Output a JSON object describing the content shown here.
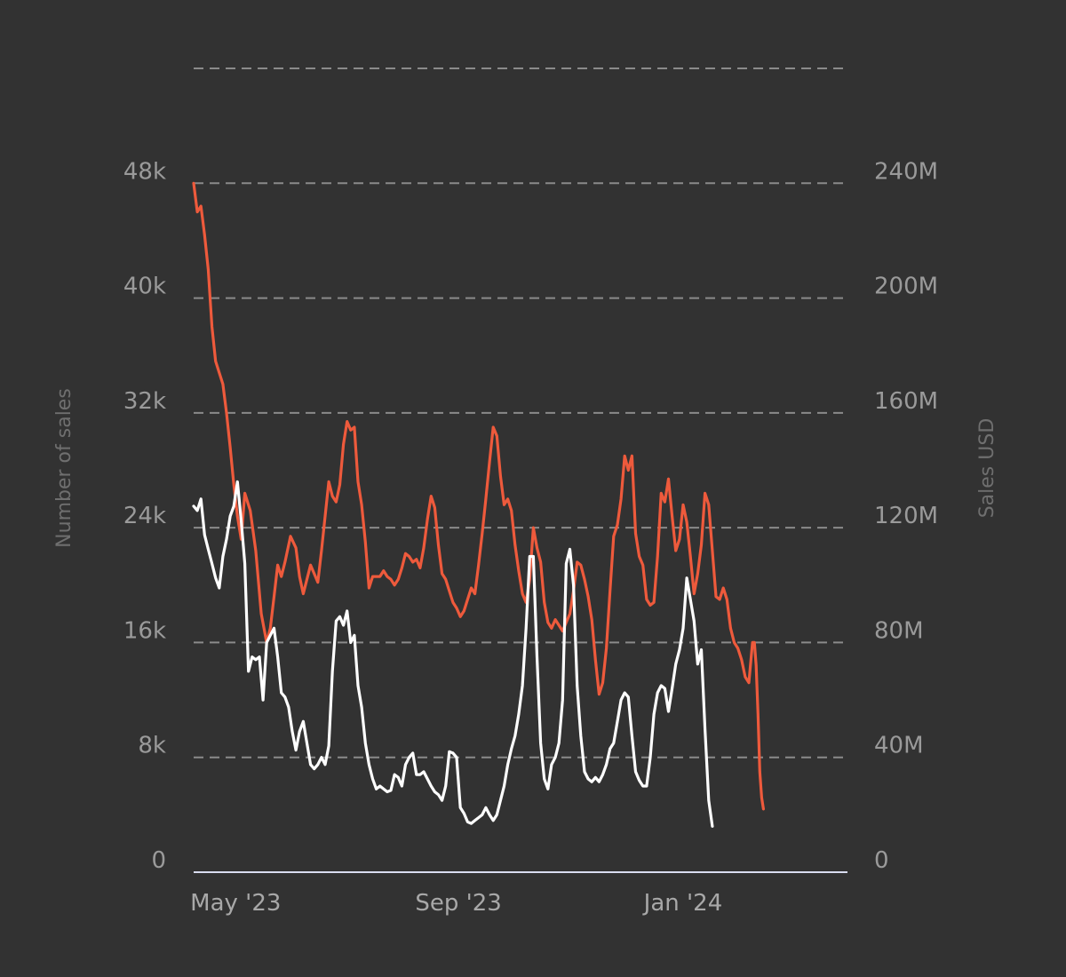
{
  "colors": {
    "background": "#323232",
    "grid": "#8a8a8a",
    "baseline": "#d8dcf0",
    "count_line": "#ffffff",
    "usd_line": "#ee5a3c"
  },
  "chart_data": {
    "type": "line",
    "title": "",
    "x_start": "2023-04-08",
    "x_end": "2024-03-31",
    "x_range_days": [
      0,
      358
    ],
    "x_ticks": [
      {
        "label": "May '23",
        "day": 23
      },
      {
        "label": "Sep '23",
        "day": 145
      },
      {
        "label": "Jan '24",
        "day": 268
      }
    ],
    "left_axis": {
      "label": "Number of sales",
      "range": [
        0,
        56000
      ],
      "tick_values": [
        0,
        8000,
        16000,
        24000,
        32000,
        40000,
        48000
      ],
      "tick_labels": [
        "0",
        "8k",
        "16k",
        "24k",
        "32k",
        "40k",
        "48k"
      ]
    },
    "right_axis": {
      "label": "Sales USD",
      "range": [
        0,
        280000000
      ],
      "tick_values": [
        0,
        40000000,
        80000000,
        120000000,
        160000000,
        200000000,
        240000000
      ],
      "tick_labels": [
        "0",
        "40M",
        "80M",
        "120M",
        "160M",
        "200M",
        "240M"
      ]
    },
    "series": [
      {
        "name": "Sales USD",
        "axis": "right",
        "points": [
          [
            0,
            240000000
          ],
          [
            2,
            230000000
          ],
          [
            4,
            232000000
          ],
          [
            6,
            222000000
          ],
          [
            8,
            210000000
          ],
          [
            10,
            190000000
          ],
          [
            12,
            178000000
          ],
          [
            14,
            174000000
          ],
          [
            16,
            170000000
          ],
          [
            18,
            160000000
          ],
          [
            20,
            148000000
          ],
          [
            22,
            135000000
          ],
          [
            24,
            124000000
          ],
          [
            26,
            116000000
          ],
          [
            28,
            132000000
          ],
          [
            31,
            126000000
          ],
          [
            34,
            112000000
          ],
          [
            37,
            90000000
          ],
          [
            40,
            80000000
          ],
          [
            42,
            85000000
          ],
          [
            44,
            96000000
          ],
          [
            46,
            107000000
          ],
          [
            48,
            103000000
          ],
          [
            50,
            108000000
          ],
          [
            53,
            117000000
          ],
          [
            56,
            113000000
          ],
          [
            58,
            103000000
          ],
          [
            60,
            97000000
          ],
          [
            62,
            102000000
          ],
          [
            64,
            107000000
          ],
          [
            66,
            104000000
          ],
          [
            68,
            101000000
          ],
          [
            70,
            112000000
          ],
          [
            72,
            124000000
          ],
          [
            74,
            136000000
          ],
          [
            76,
            131000000
          ],
          [
            78,
            129000000
          ],
          [
            80,
            135000000
          ],
          [
            82,
            149000000
          ],
          [
            84,
            157000000
          ],
          [
            86,
            154000000
          ],
          [
            88,
            155000000
          ],
          [
            90,
            136000000
          ],
          [
            92,
            128000000
          ],
          [
            94,
            115000000
          ],
          [
            96,
            99000000
          ],
          [
            98,
            103000000
          ],
          [
            100,
            103000000
          ],
          [
            102,
            103000000
          ],
          [
            104,
            105000000
          ],
          [
            106,
            103000000
          ],
          [
            108,
            102000000
          ],
          [
            110,
            100000000
          ],
          [
            112,
            102000000
          ],
          [
            114,
            106000000
          ],
          [
            116,
            111000000
          ],
          [
            118,
            110000000
          ],
          [
            120,
            108000000
          ],
          [
            122,
            109000000
          ],
          [
            124,
            106000000
          ],
          [
            126,
            113000000
          ],
          [
            128,
            123000000
          ],
          [
            130,
            131000000
          ],
          [
            132,
            127000000
          ],
          [
            134,
            114000000
          ],
          [
            136,
            104000000
          ],
          [
            138,
            102000000
          ],
          [
            140,
            98000000
          ],
          [
            142,
            94000000
          ],
          [
            144,
            92000000
          ],
          [
            146,
            89000000
          ],
          [
            148,
            91000000
          ],
          [
            150,
            95000000
          ],
          [
            152,
            99000000
          ],
          [
            154,
            97000000
          ],
          [
            156,
            107000000
          ],
          [
            158,
            118000000
          ],
          [
            160,
            130000000
          ],
          [
            162,
            143000000
          ],
          [
            164,
            155000000
          ],
          [
            166,
            152000000
          ],
          [
            168,
            138000000
          ],
          [
            170,
            128000000
          ],
          [
            172,
            130000000
          ],
          [
            174,
            126000000
          ],
          [
            176,
            114000000
          ],
          [
            178,
            105000000
          ],
          [
            180,
            97000000
          ],
          [
            182,
            94000000
          ],
          [
            184,
            102000000
          ],
          [
            186,
            120000000
          ],
          [
            188,
            113000000
          ],
          [
            190,
            108000000
          ],
          [
            192,
            94000000
          ],
          [
            194,
            87000000
          ],
          [
            196,
            85000000
          ],
          [
            198,
            88000000
          ],
          [
            200,
            86000000
          ],
          [
            202,
            84000000
          ],
          [
            204,
            87000000
          ],
          [
            206,
            90000000
          ],
          [
            208,
            98000000
          ],
          [
            210,
            108000000
          ],
          [
            212,
            107000000
          ],
          [
            214,
            102000000
          ],
          [
            216,
            96000000
          ],
          [
            218,
            88000000
          ],
          [
            220,
            74000000
          ],
          [
            222,
            62000000
          ],
          [
            224,
            66000000
          ],
          [
            226,
            78000000
          ],
          [
            228,
            98000000
          ],
          [
            230,
            117000000
          ],
          [
            232,
            121000000
          ],
          [
            234,
            130000000
          ],
          [
            236,
            145000000
          ],
          [
            238,
            140000000
          ],
          [
            240,
            145000000
          ],
          [
            242,
            118000000
          ],
          [
            244,
            110000000
          ],
          [
            246,
            107000000
          ],
          [
            248,
            95000000
          ],
          [
            250,
            93000000
          ],
          [
            252,
            94000000
          ],
          [
            254,
            110000000
          ],
          [
            256,
            132000000
          ],
          [
            258,
            129000000
          ],
          [
            260,
            137000000
          ],
          [
            262,
            124000000
          ],
          [
            264,
            112000000
          ],
          [
            266,
            116000000
          ],
          [
            268,
            128000000
          ],
          [
            270,
            122000000
          ],
          [
            272,
            110000000
          ],
          [
            274,
            97000000
          ],
          [
            276,
            104000000
          ],
          [
            278,
            114000000
          ],
          [
            280,
            132000000
          ],
          [
            282,
            128000000
          ],
          [
            284,
            112000000
          ],
          [
            286,
            96000000
          ],
          [
            288,
            95000000
          ],
          [
            290,
            99000000
          ],
          [
            292,
            95000000
          ],
          [
            294,
            85000000
          ],
          [
            296,
            80000000
          ],
          [
            298,
            78000000
          ],
          [
            300,
            74000000
          ],
          [
            302,
            68000000
          ],
          [
            304,
            66000000
          ],
          [
            306,
            80000000
          ],
          [
            307,
            80000000
          ],
          [
            308,
            72000000
          ],
          [
            309,
            55000000
          ],
          [
            310,
            35000000
          ],
          [
            311,
            26000000
          ],
          [
            312,
            22000000
          ]
        ]
      },
      {
        "name": "Number of sales",
        "axis": "left",
        "points": [
          [
            0,
            25500
          ],
          [
            2,
            25200
          ],
          [
            4,
            26000
          ],
          [
            6,
            23500
          ],
          [
            8,
            22500
          ],
          [
            10,
            21500
          ],
          [
            12,
            20500
          ],
          [
            14,
            19800
          ],
          [
            16,
            22000
          ],
          [
            18,
            23200
          ],
          [
            20,
            24800
          ],
          [
            22,
            25500
          ],
          [
            24,
            27200
          ],
          [
            26,
            24500
          ],
          [
            28,
            21500
          ],
          [
            30,
            14000
          ],
          [
            32,
            15000
          ],
          [
            34,
            14800
          ],
          [
            36,
            15000
          ],
          [
            38,
            12000
          ],
          [
            40,
            16000
          ],
          [
            42,
            16500
          ],
          [
            44,
            17000
          ],
          [
            46,
            15000
          ],
          [
            48,
            12500
          ],
          [
            50,
            12200
          ],
          [
            52,
            11500
          ],
          [
            54,
            9800
          ],
          [
            56,
            8500
          ],
          [
            58,
            9800
          ],
          [
            60,
            10500
          ],
          [
            62,
            9000
          ],
          [
            64,
            7500
          ],
          [
            66,
            7200
          ],
          [
            68,
            7500
          ],
          [
            70,
            8000
          ],
          [
            72,
            7500
          ],
          [
            74,
            8800
          ],
          [
            76,
            14000
          ],
          [
            78,
            17500
          ],
          [
            80,
            17800
          ],
          [
            82,
            17200
          ],
          [
            84,
            18200
          ],
          [
            86,
            16000
          ],
          [
            88,
            16500
          ],
          [
            90,
            13000
          ],
          [
            92,
            11500
          ],
          [
            94,
            9000
          ],
          [
            96,
            7500
          ],
          [
            98,
            6500
          ],
          [
            100,
            5800
          ],
          [
            102,
            6000
          ],
          [
            104,
            5800
          ],
          [
            106,
            5600
          ],
          [
            108,
            5700
          ],
          [
            110,
            6800
          ],
          [
            112,
            6600
          ],
          [
            114,
            6000
          ],
          [
            116,
            7500
          ],
          [
            118,
            8000
          ],
          [
            120,
            8300
          ],
          [
            122,
            6800
          ],
          [
            124,
            6800
          ],
          [
            126,
            7000
          ],
          [
            128,
            6500
          ],
          [
            130,
            6000
          ],
          [
            132,
            5600
          ],
          [
            134,
            5400
          ],
          [
            136,
            5000
          ],
          [
            138,
            6000
          ],
          [
            140,
            8400
          ],
          [
            142,
            8300
          ],
          [
            144,
            8000
          ],
          [
            146,
            4500
          ],
          [
            148,
            4100
          ],
          [
            150,
            3500
          ],
          [
            152,
            3400
          ],
          [
            154,
            3600
          ],
          [
            156,
            3800
          ],
          [
            158,
            4000
          ],
          [
            160,
            4500
          ],
          [
            162,
            4000
          ],
          [
            164,
            3600
          ],
          [
            166,
            4000
          ],
          [
            168,
            5000
          ],
          [
            170,
            6000
          ],
          [
            172,
            7500
          ],
          [
            174,
            8600
          ],
          [
            176,
            9500
          ],
          [
            178,
            11000
          ],
          [
            180,
            13000
          ],
          [
            182,
            17000
          ],
          [
            184,
            22000
          ],
          [
            186,
            22000
          ],
          [
            188,
            15000
          ],
          [
            190,
            9000
          ],
          [
            192,
            6500
          ],
          [
            194,
            5800
          ],
          [
            196,
            7500
          ],
          [
            198,
            8000
          ],
          [
            200,
            9000
          ],
          [
            202,
            12000
          ],
          [
            204,
            21500
          ],
          [
            206,
            22500
          ],
          [
            208,
            20000
          ],
          [
            210,
            13000
          ],
          [
            212,
            9500
          ],
          [
            214,
            7000
          ],
          [
            216,
            6500
          ],
          [
            218,
            6300
          ],
          [
            220,
            6600
          ],
          [
            222,
            6300
          ],
          [
            224,
            6800
          ],
          [
            226,
            7500
          ],
          [
            228,
            8600
          ],
          [
            230,
            9000
          ],
          [
            232,
            10500
          ],
          [
            234,
            12000
          ],
          [
            236,
            12500
          ],
          [
            238,
            12200
          ],
          [
            240,
            9500
          ],
          [
            242,
            7000
          ],
          [
            244,
            6400
          ],
          [
            246,
            6000
          ],
          [
            248,
            6000
          ],
          [
            250,
            8000
          ],
          [
            252,
            11000
          ],
          [
            254,
            12500
          ],
          [
            256,
            13000
          ],
          [
            258,
            12800
          ],
          [
            260,
            11200
          ],
          [
            262,
            12800
          ],
          [
            264,
            14500
          ],
          [
            266,
            15500
          ],
          [
            268,
            17000
          ],
          [
            270,
            20500
          ],
          [
            272,
            19000
          ],
          [
            274,
            17500
          ],
          [
            276,
            14500
          ],
          [
            278,
            15500
          ],
          [
            280,
            10000
          ],
          [
            282,
            5000
          ],
          [
            284,
            3200
          ]
        ]
      }
    ]
  }
}
